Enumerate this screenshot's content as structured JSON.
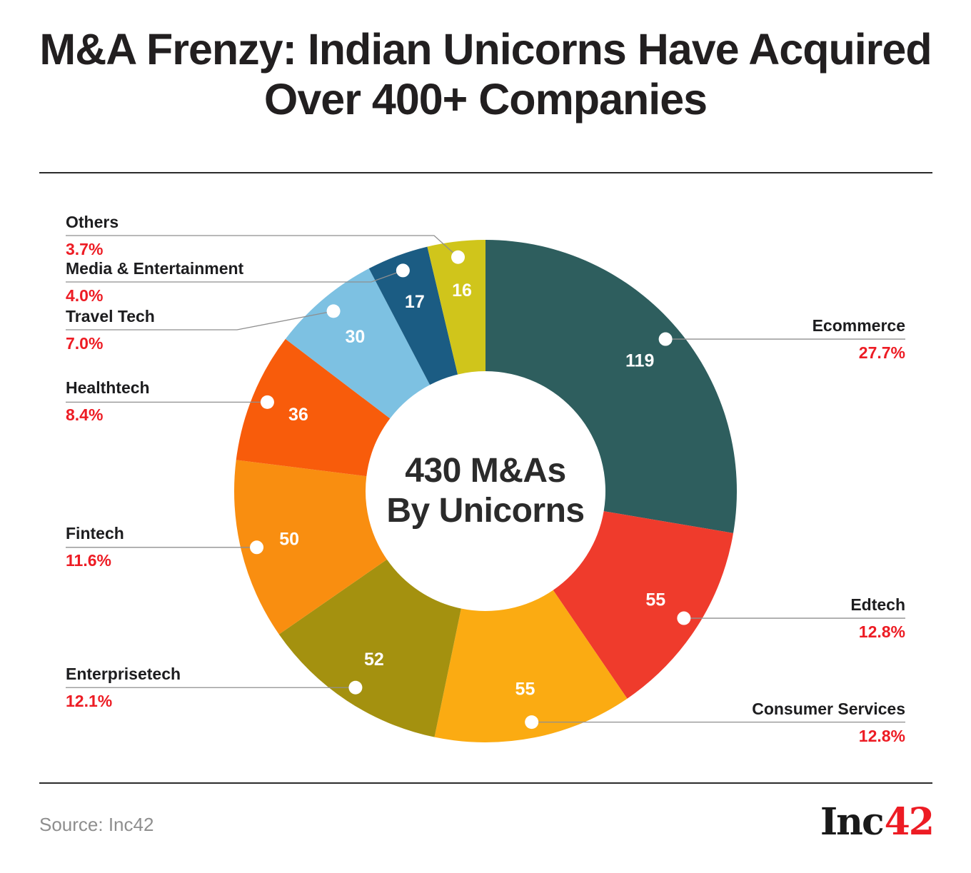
{
  "title": "M&A Frenzy: Indian Unicorns Have Acquired Over 400+ Companies",
  "center": {
    "line1": "430 M&As",
    "line2": "By Unicorns"
  },
  "source": "Source: Inc42",
  "logo": {
    "black_part": "Inc",
    "red_part": "42"
  },
  "colors": {
    "accent_red": "#ED1C24",
    "title": "#221F20",
    "text_dark": "#1D1D1F",
    "leader_line_gray": "#8F8F8F",
    "divider": "#2B2B2B",
    "source_gray": "#8E8E8E",
    "logo_black": "#1A1A1A",
    "value_text": "#FFFFFF"
  },
  "chart_data": {
    "type": "pie",
    "subtype": "donut",
    "title": "430 M&As By Unicorns",
    "total": 430,
    "legend_position": "callout-labels",
    "segments": [
      {
        "label": "Ecommerce",
        "value": 119,
        "pct": 27.7,
        "pct_label": "27.7%",
        "color": "#2E5E5E"
      },
      {
        "label": "Edtech",
        "value": 55,
        "pct": 12.8,
        "pct_label": "12.8%",
        "color": "#EF3B2C"
      },
      {
        "label": "Consumer Services",
        "value": 55,
        "pct": 12.8,
        "pct_label": "12.8%",
        "color": "#FBAB12"
      },
      {
        "label": "Enterprisetech",
        "value": 52,
        "pct": 12.1,
        "pct_label": "12.1%",
        "color": "#A4910F"
      },
      {
        "label": "Fintech",
        "value": 50,
        "pct": 11.6,
        "pct_label": "11.6%",
        "color": "#F98E10"
      },
      {
        "label": "Healthtech",
        "value": 36,
        "pct": 8.4,
        "pct_label": "8.4%",
        "color": "#F85C0B"
      },
      {
        "label": "Travel Tech",
        "value": 30,
        "pct": 7.0,
        "pct_label": "7.0%",
        "color": "#7DC1E2"
      },
      {
        "label": "Media & Entertainment",
        "value": 17,
        "pct": 4.0,
        "pct_label": "4.0%",
        "color": "#1B5C83"
      },
      {
        "label": "Others",
        "value": 16,
        "pct": 3.7,
        "pct_label": "3.7%",
        "color": "#D0C51B"
      }
    ]
  }
}
